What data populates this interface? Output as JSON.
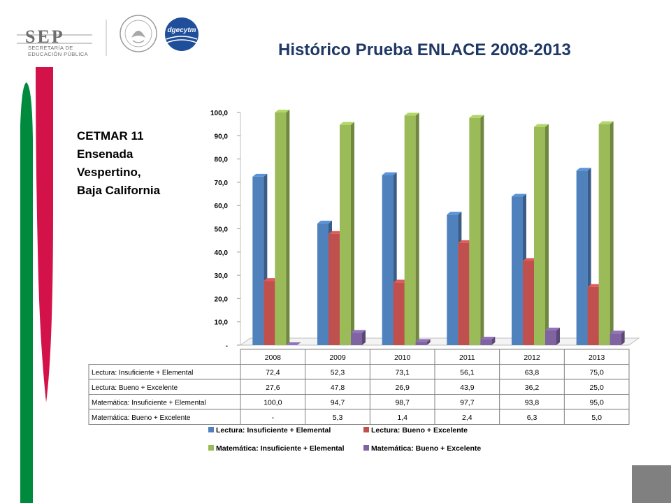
{
  "header": {
    "logo_word": "SEP",
    "logo_sub_line1": "SECRETARÍA DE",
    "logo_sub_line2": "EDUCACIÓN PÚBLICA",
    "dgec_logo_text": "dgecytm",
    "title": "Histórico Prueba ENLACE 2008-2013"
  },
  "side_label": {
    "line1": "CETMAR 11",
    "line2": "Ensenada",
    "line3": "Vespertino,",
    "line4": "Baja California"
  },
  "colors": {
    "title": "#1f3864",
    "stripe_green": "#008a3e",
    "stripe_red": "#d4124a",
    "series": [
      "#4f81bd",
      "#c0504d",
      "#9bbb59",
      "#8064a2"
    ]
  },
  "chart_data": {
    "type": "bar",
    "title": "",
    "categories": [
      "2008",
      "2009",
      "2010",
      "2011",
      "2012",
      "2013"
    ],
    "series": [
      {
        "name": "Lectura: Insuficiente + Elemental",
        "values": [
          72.4,
          52.3,
          73.1,
          56.1,
          63.8,
          75.0
        ],
        "labels": [
          "72,4",
          "52,3",
          "73,1",
          "56,1",
          "63,8",
          "75,0"
        ]
      },
      {
        "name": "Lectura: Bueno + Excelente",
        "values": [
          27.6,
          47.8,
          26.9,
          43.9,
          36.2,
          25.0
        ],
        "labels": [
          "27,6",
          "47,8",
          "26,9",
          "43,9",
          "36,2",
          "25,0"
        ]
      },
      {
        "name": "Matemática: Insuficiente + Elemental",
        "values": [
          100.0,
          94.7,
          98.7,
          97.7,
          93.8,
          95.0
        ],
        "labels": [
          "100,0",
          "94,7",
          "98,7",
          "97,7",
          "93,8",
          "95,0"
        ]
      },
      {
        "name": "Matemática: Bueno + Excelente",
        "values": [
          0,
          5.3,
          1.4,
          2.4,
          6.3,
          5.0
        ],
        "labels": [
          "-",
          "5,3",
          "1,4",
          "2,4",
          "6,3",
          "5,0"
        ]
      }
    ],
    "ylim": [
      0,
      100
    ],
    "yticks": [
      "-",
      "10,0",
      "20,0",
      "30,0",
      "40,0",
      "50,0",
      "60,0",
      "70,0",
      "80,0",
      "90,0",
      "100,0"
    ],
    "grid": false,
    "legend": "bottom",
    "data_table": true,
    "style": "3d-column"
  }
}
